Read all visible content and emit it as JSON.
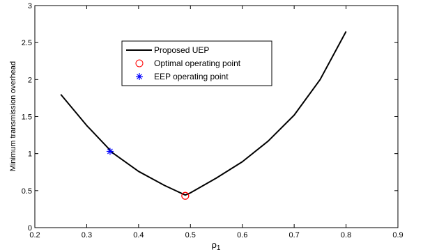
{
  "chart_data": {
    "type": "line",
    "xlabel": "ρ",
    "xlabel_subscript": "1",
    "ylabel": "Minimum transmission overhead",
    "xlim": [
      0.2,
      0.9
    ],
    "ylim": [
      0,
      3
    ],
    "xticks": [
      "0.2",
      "0.3",
      "0.4",
      "0.5",
      "0.6",
      "0.7",
      "0.8",
      "0.9"
    ],
    "yticks": [
      "0",
      "0.5",
      "1",
      "1.5",
      "2",
      "2.5",
      "3"
    ],
    "grid": false,
    "legend_position": "top-center",
    "series": [
      {
        "name": "Proposed UEP",
        "style": "line",
        "color": "#000000",
        "x": [
          0.25,
          0.3,
          0.35,
          0.4,
          0.45,
          0.49,
          0.5,
          0.55,
          0.6,
          0.65,
          0.7,
          0.75,
          0.8
        ],
        "y": [
          1.8,
          1.38,
          1.01,
          0.76,
          0.57,
          0.44,
          0.47,
          0.67,
          0.89,
          1.17,
          1.52,
          2.0,
          2.65
        ]
      },
      {
        "name": "Optimal operating point",
        "style": "marker-circle",
        "color": "#ff0000",
        "x": [
          0.49
        ],
        "y": [
          0.43
        ]
      },
      {
        "name": "EEP operating point",
        "style": "marker-star",
        "color": "#0000ff",
        "x": [
          0.345
        ],
        "y": [
          1.03
        ]
      }
    ]
  }
}
